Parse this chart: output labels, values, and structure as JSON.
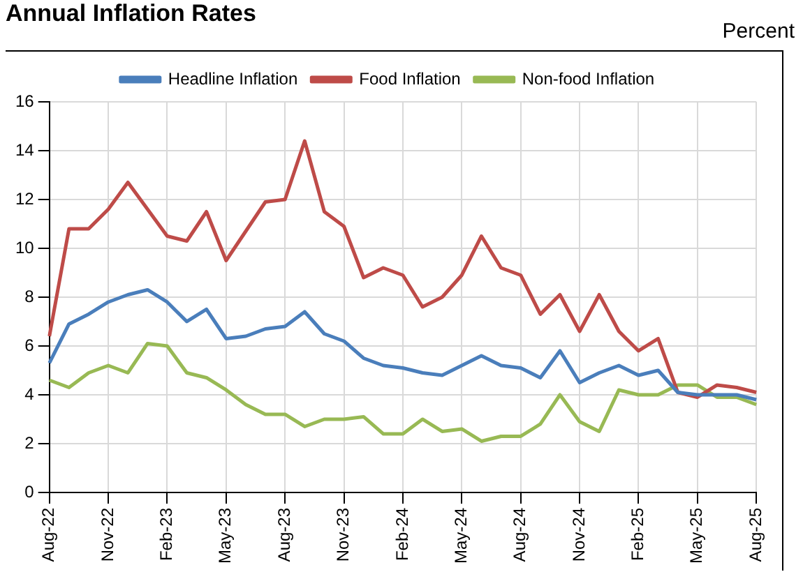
{
  "chart_data": {
    "type": "line",
    "title": "Annual Inflation Rates",
    "ylabel": "Percent",
    "categories": [
      "Aug-22",
      null,
      null,
      "Nov-22",
      null,
      null,
      "Feb-23",
      null,
      null,
      "May-23",
      null,
      null,
      "Aug-23",
      null,
      null,
      "Nov-23",
      null,
      null,
      "Feb-24",
      null,
      null,
      "May-24",
      null,
      null,
      "Aug-24",
      null,
      null,
      "Nov-24",
      null,
      null,
      "Feb-25",
      null,
      null,
      "May-25",
      null,
      null,
      "Aug-25"
    ],
    "series": [
      {
        "name": "Headline Inflation",
        "color": "#4a7ebb",
        "values": [
          5.3,
          6.9,
          7.3,
          7.8,
          8.1,
          8.3,
          7.8,
          7.0,
          7.5,
          6.3,
          6.4,
          6.7,
          6.8,
          7.4,
          6.5,
          6.2,
          5.5,
          5.2,
          5.1,
          4.9,
          4.8,
          5.2,
          5.6,
          5.2,
          5.1,
          4.7,
          5.8,
          4.5,
          4.9,
          5.2,
          4.8,
          5.0,
          4.1,
          4.0,
          4.0,
          4.0,
          3.8
        ]
      },
      {
        "name": "Food Inflation",
        "color": "#be4b48",
        "values": [
          6.4,
          10.8,
          10.8,
          11.6,
          12.7,
          11.6,
          10.5,
          10.3,
          11.5,
          9.5,
          10.7,
          11.9,
          12.0,
          14.4,
          11.5,
          10.9,
          8.8,
          9.2,
          8.9,
          7.6,
          8.0,
          8.9,
          10.5,
          9.2,
          8.9,
          7.3,
          8.1,
          6.6,
          8.1,
          6.6,
          5.8,
          6.3,
          4.1,
          3.9,
          4.4,
          4.3,
          4.1
        ]
      },
      {
        "name": "Non-food Inflation",
        "color": "#98b954",
        "values": [
          4.6,
          4.3,
          4.9,
          5.2,
          4.9,
          6.1,
          6.0,
          4.9,
          4.7,
          4.2,
          3.6,
          3.2,
          3.2,
          2.7,
          3.0,
          3.0,
          3.1,
          2.4,
          2.4,
          3.0,
          2.5,
          2.6,
          2.1,
          2.3,
          2.3,
          2.8,
          4.0,
          2.9,
          2.5,
          4.2,
          4.0,
          4.0,
          4.4,
          4.4,
          3.9,
          3.9,
          3.6
        ]
      }
    ],
    "ylim": [
      0,
      16
    ],
    "yticks": [
      0,
      2,
      4,
      6,
      8,
      10,
      12,
      14,
      16
    ],
    "grid": true,
    "legend": "top",
    "marker": "none",
    "line_style": "solid"
  }
}
